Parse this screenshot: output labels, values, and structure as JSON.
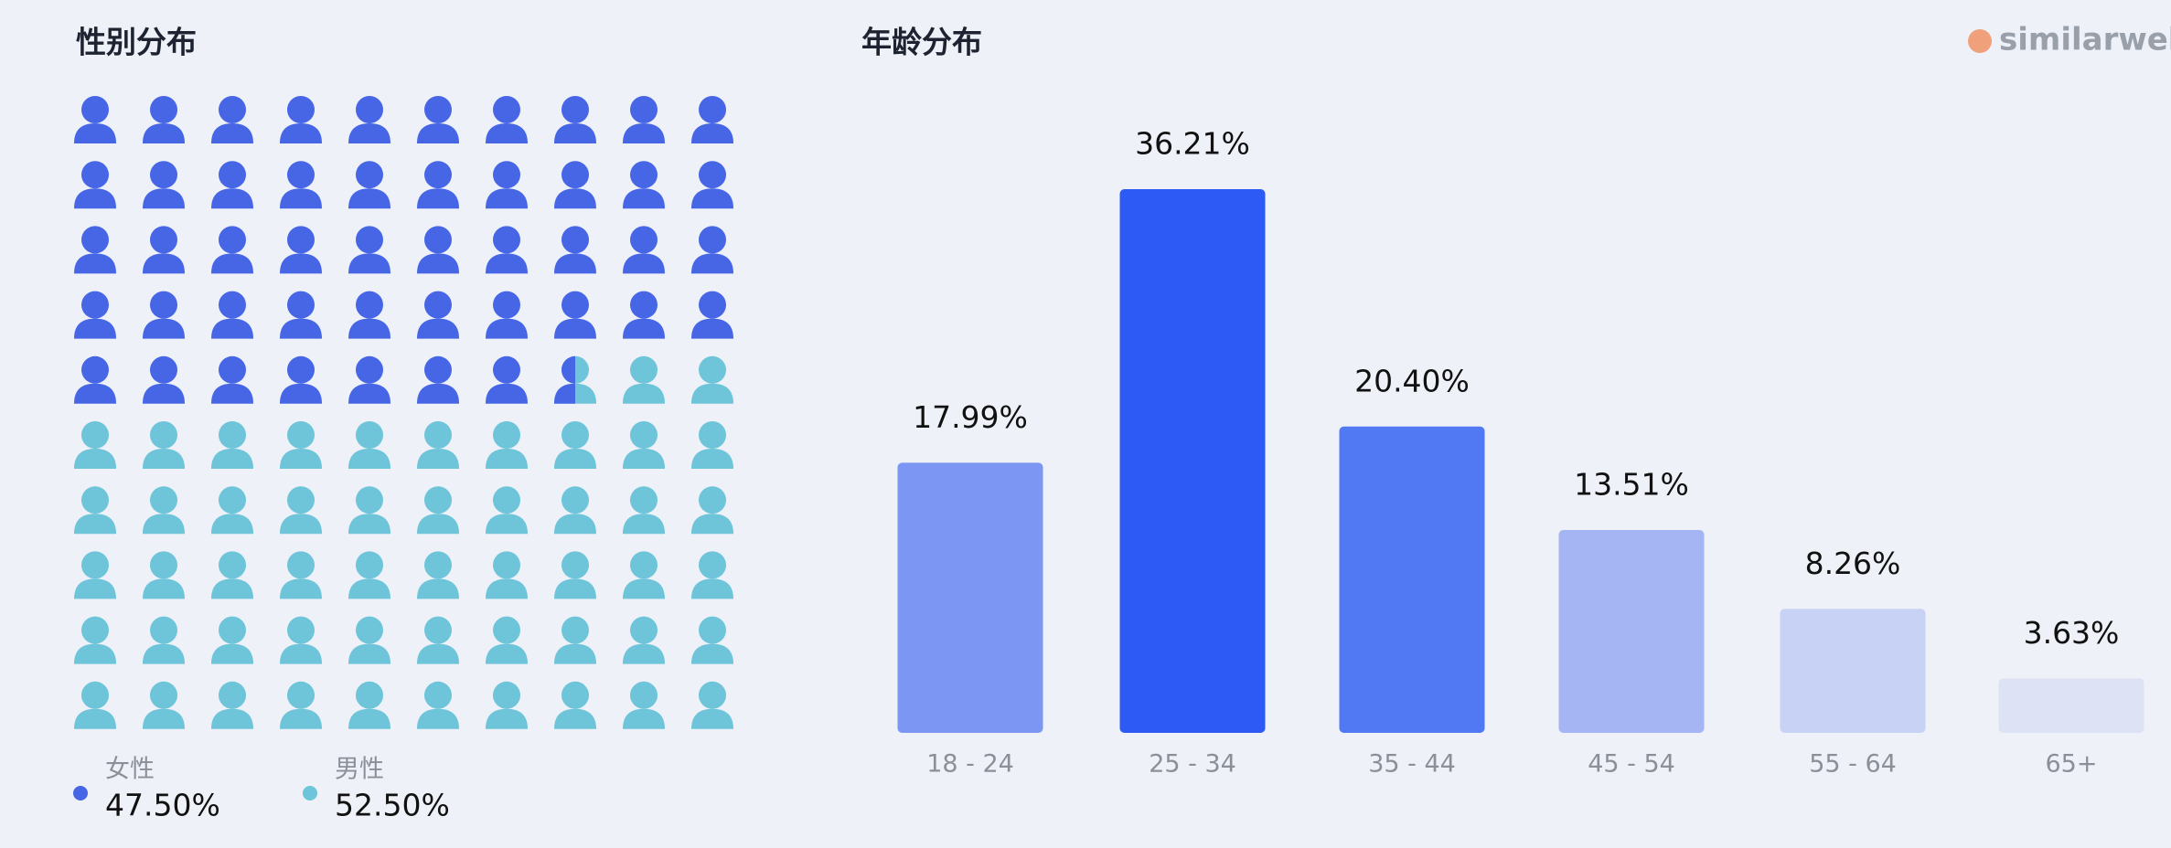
{
  "brand": "similarweb",
  "chart_data": [
    {
      "type": "pictogram",
      "title": "性别分布",
      "categories": [
        "女性",
        "男性"
      ],
      "values": [
        47.5,
        52.5
      ],
      "value_labels": [
        "47.50%",
        "52.50%"
      ],
      "colors": [
        "#4766e6",
        "#6ec4d9"
      ]
    },
    {
      "type": "bar",
      "title": "年龄分布",
      "categories": [
        "18 - 24",
        "25 - 34",
        "35 - 44",
        "45 - 54",
        "55 - 64",
        "65+"
      ],
      "values": [
        17.99,
        36.21,
        20.4,
        13.51,
        8.26,
        3.63
      ],
      "value_labels": [
        "17.99%",
        "36.21%",
        "20.40%",
        "13.51%",
        "8.26%",
        "3.63%"
      ],
      "colors": [
        "#7b96f3",
        "#2d59f5",
        "#5079f3",
        "#a5b4f3",
        "#c8d2f4",
        "#dde3f5"
      ]
    }
  ]
}
